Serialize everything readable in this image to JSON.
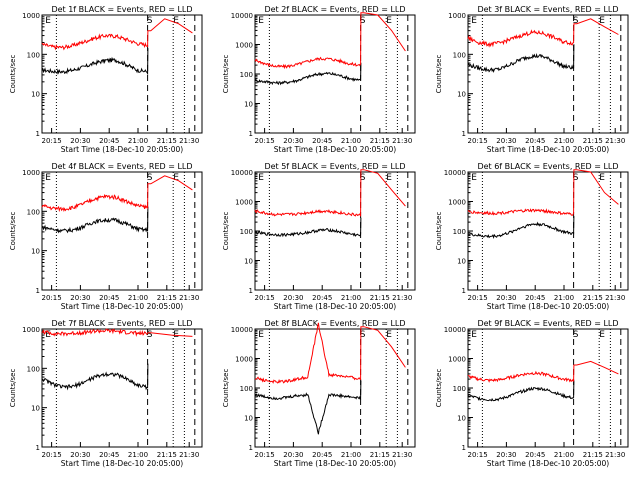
{
  "common": {
    "xlabel": "Start Time (18-Dec-10 20:05:00)",
    "ylabel": "Counts/sec",
    "xticks": [
      "20:15",
      "20:30",
      "20:45",
      "21:00",
      "21:15",
      "21:30"
    ],
    "marker_labels": [
      "E",
      "S",
      "E"
    ],
    "colors": {
      "events": "#000000",
      "lld": "#ff0000"
    }
  },
  "chart_data": [
    {
      "type": "line",
      "title": "Det 1f BLACK = Events, RED = LLD",
      "ylim": [
        1,
        1000
      ],
      "yticks": [
        "1",
        "10",
        "100",
        "1000"
      ],
      "series": [
        {
          "key": "events",
          "values": [
            40,
            37,
            36,
            40,
            48,
            60,
            70,
            72,
            55,
            40,
            36
          ]
        },
        {
          "key": "lld",
          "values": [
            180,
            155,
            150,
            170,
            210,
            260,
            300,
            290,
            240,
            190,
            170
          ]
        }
      ],
      "post_lld": [
        400,
        800,
        600,
        350
      ]
    },
    {
      "type": "line",
      "title": "Det 2f BLACK = Events, RED = LLD",
      "ylim": [
        1,
        10000
      ],
      "yticks": [
        "1",
        "10",
        "100",
        "1000",
        "10000"
      ],
      "series": [
        {
          "key": "events",
          "values": [
            60,
            55,
            50,
            52,
            60,
            80,
            100,
            105,
            90,
            70,
            60
          ]
        },
        {
          "key": "lld",
          "values": [
            300,
            220,
            180,
            180,
            210,
            270,
            330,
            330,
            280,
            220,
            200
          ]
        }
      ],
      "post_lld": [
        12000,
        10000,
        3000,
        600
      ]
    },
    {
      "type": "line",
      "title": "Det 3f BLACK = Events, RED = LLD",
      "ylim": [
        1,
        1000
      ],
      "yticks": [
        "1",
        "10",
        "100",
        "1000"
      ],
      "series": [
        {
          "key": "events",
          "values": [
            55,
            45,
            40,
            42,
            55,
            75,
            90,
            90,
            70,
            50,
            45
          ]
        },
        {
          "key": "lld",
          "values": [
            260,
            200,
            180,
            195,
            240,
            300,
            360,
            350,
            280,
            210,
            190
          ]
        }
      ],
      "post_lld": [
        600,
        800,
        500,
        320
      ]
    },
    {
      "type": "line",
      "title": "Det 4f BLACK = Events, RED = LLD",
      "ylim": [
        1,
        1000
      ],
      "yticks": [
        "1",
        "10",
        "100",
        "1000"
      ],
      "series": [
        {
          "key": "events",
          "values": [
            40,
            35,
            32,
            34,
            42,
            55,
            60,
            60,
            48,
            36,
            33
          ]
        },
        {
          "key": "lld",
          "values": [
            140,
            120,
            115,
            125,
            160,
            210,
            240,
            230,
            180,
            140,
            125
          ]
        }
      ],
      "post_lld": [
        500,
        800,
        600,
        350
      ]
    },
    {
      "type": "line",
      "title": "Det 5f BLACK = Events, RED = LLD",
      "ylim": [
        1,
        10000
      ],
      "yticks": [
        "1",
        "10",
        "100",
        "1000",
        "10000"
      ],
      "series": [
        {
          "key": "events",
          "values": [
            90,
            80,
            75,
            75,
            80,
            90,
            105,
            110,
            95,
            80,
            70
          ]
        },
        {
          "key": "lld",
          "values": [
            480,
            400,
            360,
            360,
            380,
            420,
            470,
            470,
            420,
            370,
            340
          ]
        }
      ],
      "post_lld": [
        12000,
        9000,
        2500,
        700
      ]
    },
    {
      "type": "line",
      "title": "Det 6f BLACK = Events, RED = LLD",
      "ylim": [
        1,
        10000
      ],
      "yticks": [
        "1",
        "10",
        "100",
        "1000",
        "10000"
      ],
      "series": [
        {
          "key": "events",
          "values": [
            80,
            70,
            65,
            70,
            90,
            130,
            170,
            170,
            130,
            95,
            80
          ]
        },
        {
          "key": "lld",
          "values": [
            460,
            420,
            400,
            410,
            440,
            480,
            500,
            490,
            440,
            390,
            370
          ]
        }
      ],
      "post_lld": [
        12000,
        10000,
        2000,
        800
      ]
    },
    {
      "type": "line",
      "title": "Det 7f BLACK = Events, RED = LLD",
      "ylim": [
        1,
        1000
      ],
      "yticks": [
        "1",
        "10",
        "100",
        "1000"
      ],
      "series": [
        {
          "key": "events",
          "values": [
            55,
            40,
            33,
            35,
            45,
            60,
            72,
            70,
            55,
            38,
            33
          ]
        },
        {
          "key": "lld",
          "values": [
            850,
            780,
            750,
            780,
            830,
            880,
            900,
            880,
            820,
            780,
            760
          ]
        }
      ],
      "post_lld": [
        800,
        700,
        650
      ]
    },
    {
      "type": "line",
      "title": "Det 8f BLACK = Events, RED = LLD",
      "ylim": [
        1,
        10000
      ],
      "yticks": [
        "1",
        "10",
        "100",
        "1000",
        "10000"
      ],
      "series": [
        {
          "key": "events",
          "values": [
            60,
            50,
            45,
            48,
            55,
            60,
            3,
            60,
            55,
            50,
            45
          ]
        },
        {
          "key": "lld",
          "values": [
            220,
            180,
            160,
            170,
            200,
            240,
            15000,
            280,
            260,
            230,
            200
          ]
        }
      ],
      "post_lld": [
        12000,
        9000,
        2500,
        500
      ]
    },
    {
      "type": "line",
      "title": "Det 9f BLACK = Events, RED = LLD",
      "ylim": [
        1,
        10000
      ],
      "yticks": [
        "1",
        "10",
        "100",
        "1000",
        "10000"
      ],
      "series": [
        {
          "key": "events",
          "values": [
            55,
            45,
            40,
            42,
            55,
            75,
            95,
            95,
            75,
            55,
            45
          ]
        },
        {
          "key": "lld",
          "values": [
            250,
            200,
            180,
            190,
            230,
            280,
            320,
            310,
            250,
            200,
            180
          ]
        }
      ],
      "post_lld": [
        600,
        800,
        500,
        300
      ]
    }
  ]
}
